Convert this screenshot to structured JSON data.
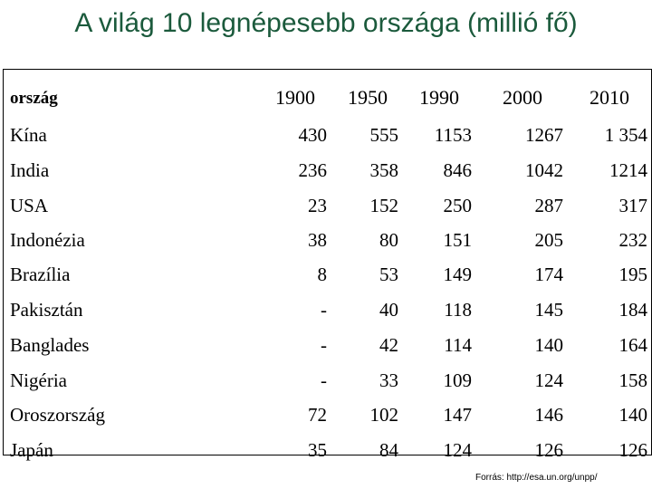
{
  "title": "A világ 10 legnépesebb országa (millió fő)",
  "table": {
    "header": [
      "ország",
      "1900",
      "1950",
      "1990",
      "2000",
      "2010"
    ],
    "rows": [
      [
        "Kína",
        "430",
        "555",
        "1153",
        "1267",
        "1 354"
      ],
      [
        "India",
        "236",
        "358",
        "846",
        "1042",
        "1214"
      ],
      [
        "USA",
        "23",
        "152",
        "250",
        "287",
        "317"
      ],
      [
        "Indonézia",
        "38",
        "80",
        "151",
        "205",
        "232"
      ],
      [
        "Brazília",
        "8",
        "53",
        "149",
        "174",
        "195"
      ],
      [
        "Pakisztán",
        "-",
        "40",
        "118",
        "145",
        "184"
      ],
      [
        "Banglades",
        "-",
        "42",
        "114",
        "140",
        "164"
      ],
      [
        "Nigéria",
        "-",
        "33",
        "109",
        "124",
        "158"
      ],
      [
        "Oroszország",
        "72",
        "102",
        "147",
        "146",
        "140"
      ],
      [
        "Japán",
        "35",
        "84",
        "124",
        "126",
        "126"
      ]
    ]
  },
  "source": "Forrás: http://esa.un.org/unpp/"
}
